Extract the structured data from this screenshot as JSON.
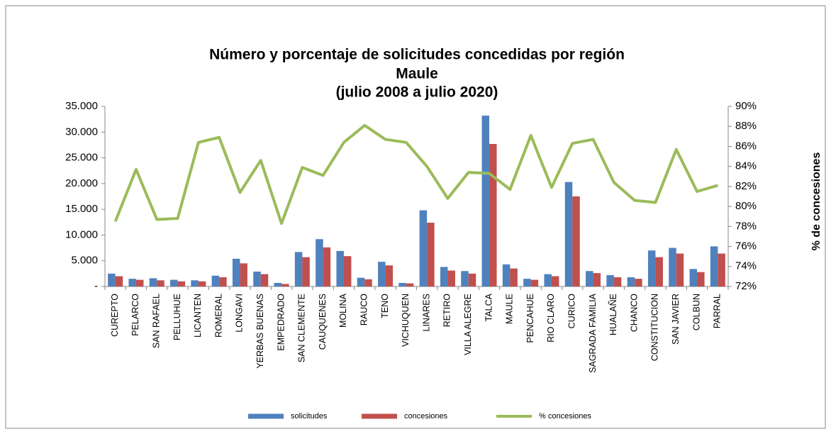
{
  "chart_data": {
    "type": "bar_line",
    "title": [
      "Número y porcentaje de solicitudes concedidas por región",
      "Maule",
      "(julio 2008 a julio 2020)"
    ],
    "y2_label": "% de concesiones",
    "categories": [
      "CUREPTO",
      "PELARCO",
      "SAN RAFAEL",
      "PELLUHUE",
      "LICANTEN",
      "ROMERAL",
      "LONGAVI",
      "YERBAS BUENAS",
      "EMPEDRADO",
      "SAN CLEMENTE",
      "CAUQUENES",
      "MOLINA",
      "RAUCO",
      "TENO",
      "VICHUQUEN",
      "LINARES",
      "RETIRO",
      "VILLA ALEGRE",
      "TALCA",
      "MAULE",
      "PENCAHUE",
      "RIO CLARO",
      "CURICO",
      "SAGRADA FAMILIA",
      "HUALAÑE",
      "CHANCO",
      "CONSTITUCION",
      "SAN JAVIER",
      "COLBUN",
      "PARRAL"
    ],
    "series": [
      {
        "name": "solicitudes",
        "type": "bar",
        "color": "#4f81bd",
        "values": [
          2500,
          1500,
          1600,
          1300,
          1200,
          2100,
          5400,
          2900,
          700,
          6700,
          9200,
          6900,
          1700,
          4800,
          700,
          14800,
          3800,
          3000,
          33200,
          4300,
          1500,
          2400,
          20300,
          3000,
          2200,
          1800,
          7000,
          7500,
          3400,
          7800
        ]
      },
      {
        "name": "concesiones",
        "type": "bar",
        "color": "#c0504d",
        "values": [
          2000,
          1300,
          1200,
          1000,
          1000,
          1800,
          4500,
          2400,
          500,
          5700,
          7600,
          5900,
          1400,
          4100,
          600,
          12400,
          3100,
          2500,
          27700,
          3500,
          1300,
          2000,
          17500,
          2600,
          1800,
          1500,
          5700,
          6400,
          2800,
          6400
        ]
      },
      {
        "name": "% concesiones",
        "type": "line",
        "axis": "y2",
        "color": "#9bbb59",
        "values": [
          78.5,
          83.7,
          78.7,
          78.8,
          86.4,
          86.9,
          81.4,
          84.6,
          78.3,
          83.9,
          83.1,
          86.4,
          88.1,
          86.7,
          86.4,
          84.0,
          80.8,
          83.4,
          83.3,
          81.7,
          87.1,
          81.9,
          86.3,
          86.7,
          82.4,
          80.6,
          80.4,
          85.7,
          81.5,
          82.1
        ]
      }
    ],
    "ylim": [
      0,
      35000
    ],
    "yticks": [
      {
        "value": 0,
        "label": "-"
      },
      {
        "value": 5000,
        "label": "5.000"
      },
      {
        "value": 10000,
        "label": "10.000"
      },
      {
        "value": 15000,
        "label": "15.000"
      },
      {
        "value": 20000,
        "label": "20.000"
      },
      {
        "value": 25000,
        "label": "25.000"
      },
      {
        "value": 30000,
        "label": "30.000"
      },
      {
        "value": 35000,
        "label": "35.000"
      }
    ],
    "y2lim": [
      72,
      90
    ],
    "y2ticks": [
      {
        "value": 72,
        "label": "72%"
      },
      {
        "value": 74,
        "label": "74%"
      },
      {
        "value": 76,
        "label": "76%"
      },
      {
        "value": 78,
        "label": "78%"
      },
      {
        "value": 80,
        "label": "80%"
      },
      {
        "value": 82,
        "label": "82%"
      },
      {
        "value": 84,
        "label": "84%"
      },
      {
        "value": 86,
        "label": "86%"
      },
      {
        "value": 88,
        "label": "88%"
      },
      {
        "value": 90,
        "label": "90%"
      }
    ],
    "legend": "bottom"
  }
}
